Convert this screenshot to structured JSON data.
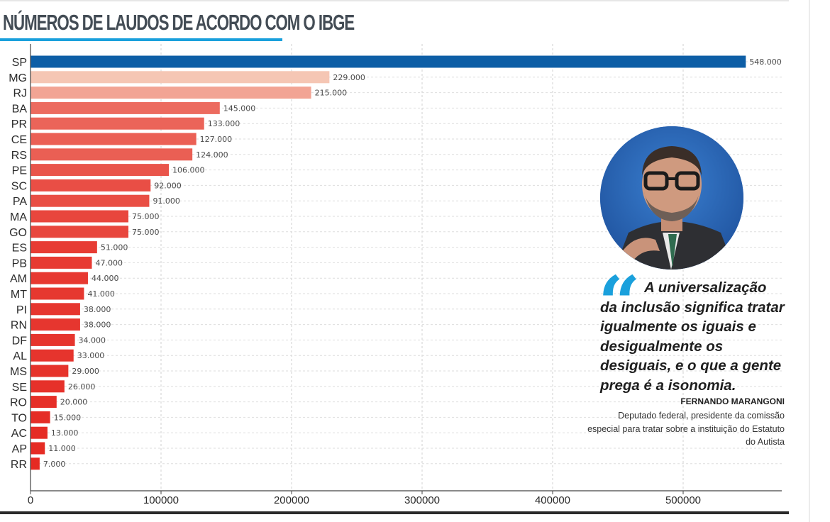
{
  "title": "NÚMEROS DE LAUDOS DE ACORDO COM O IBGE",
  "chart_data": {
    "type": "bar",
    "orientation": "horizontal",
    "title": "NÚMEROS DE LAUDOS DE ACORDO COM O IBGE",
    "xlabel": "",
    "ylabel": "",
    "xlim": [
      0,
      575000
    ],
    "grid": true,
    "categories": [
      "SP",
      "MG",
      "RJ",
      "BA",
      "PR",
      "CE",
      "RS",
      "PE",
      "SC",
      "PA",
      "MA",
      "GO",
      "ES",
      "PB",
      "AM",
      "MT",
      "PI",
      "RN",
      "DF",
      "AL",
      "MS",
      "SE",
      "RO",
      "TO",
      "AC",
      "AP",
      "RR"
    ],
    "values": [
      548000,
      229000,
      215000,
      145000,
      133000,
      127000,
      124000,
      106000,
      92000,
      91000,
      75000,
      75000,
      51000,
      47000,
      44000,
      41000,
      38000,
      38000,
      34000,
      33000,
      29000,
      26000,
      20000,
      15000,
      13000,
      11000,
      7000
    ],
    "value_labels": [
      "548.000",
      "229.000",
      "215.000",
      "145.000",
      "133.000",
      "127.000",
      "124.000",
      "106.000",
      "92.000",
      "91.000",
      "75.000",
      "75.000",
      "51.000",
      "47.000",
      "44.000",
      "41.000",
      "38.000",
      "38.000",
      "34.000",
      "33.000",
      "29.000",
      "26.000",
      "20.000",
      "15.000",
      "13.000",
      "11.000",
      "7.000"
    ],
    "xticks": [
      0,
      100000,
      200000,
      300000,
      400000,
      500000
    ],
    "xtick_labels": [
      "0",
      "100000",
      "200000",
      "300000",
      "400000",
      "500000"
    ],
    "colors": {
      "highlight": "#0d5ea6",
      "low": "#f5c6b4",
      "high": "#e52a23"
    }
  },
  "quote": {
    "text": "A universalização da inclusão significa tratar igualmente os iguais e desigualmente os desiguais, e o que a gente prega é a isonomia.",
    "mark": "“",
    "author": "FERNANDO MARANGONI",
    "role": "Deputado federal, presidente  da comissão especial para tratar sobre a instituição do Estatuto do Autista"
  },
  "accent": "#1aa0dc"
}
